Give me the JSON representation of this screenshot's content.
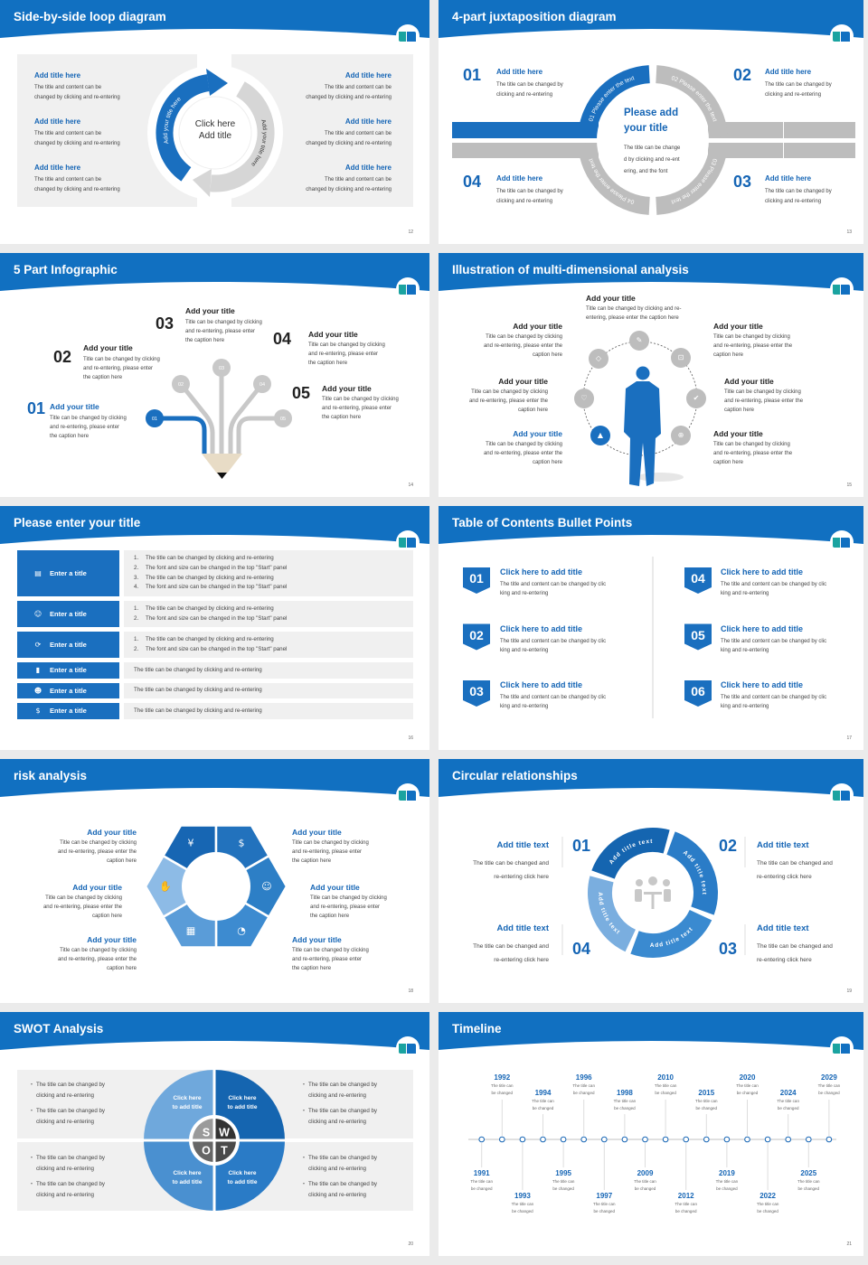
{
  "theme": {
    "header": "#1170c1",
    "teal": "#1aa3a0",
    "blue": "#1a6fbf",
    "gray": "#bdbdbd",
    "panel": "#f0f0f0"
  },
  "slides": [
    {
      "title": "Side-by-side loop diagram",
      "page": "12",
      "left_items": [
        {
          "title": "Add title here",
          "body": [
            "The title and content can be",
            "changed by clicking and re-entering"
          ]
        },
        {
          "title": "Add title here",
          "body": [
            "The title and content can be",
            "changed by clicking and re-entering"
          ]
        },
        {
          "title": "Add title here",
          "body": [
            "The title and content can be",
            "changed by clicking and re-entering"
          ]
        }
      ],
      "right_items": [
        {
          "title": "Add title here",
          "body": [
            "The title and content can be",
            "changed by clicking and re-entering"
          ]
        },
        {
          "title": "Add title here",
          "body": [
            "The title and content can be",
            "changed by clicking and re-entering"
          ]
        },
        {
          "title": "Add title here",
          "body": [
            "The title and content can be",
            "changed by clicking and re-entering"
          ]
        }
      ],
      "center": [
        "Click here",
        "Add title"
      ],
      "arc_left": "Add your title here",
      "arc_right": "Add your title here"
    },
    {
      "title": "4-part juxtaposition diagram",
      "page": "13",
      "items": [
        {
          "num": "01",
          "title": "Add title here",
          "body": [
            "The title can be changed by",
            "clicking and re-entering"
          ]
        },
        {
          "num": "02",
          "title": "Add title here",
          "body": [
            "The title can be changed by",
            "clicking and re-entering"
          ]
        },
        {
          "num": "03",
          "title": "Add title here",
          "body": [
            "The title can be changed by",
            "clicking and re-entering"
          ]
        },
        {
          "num": "04",
          "title": "Add title here",
          "body": [
            "The title can be changed by",
            "clicking and re-entering"
          ]
        }
      ],
      "ring": [
        "01 Please enter the text",
        "02 Please enter the text",
        "03 Please enter the text",
        "04 Please enter the text"
      ],
      "center_title": [
        "Please add",
        "your title"
      ],
      "center_body": [
        "The title can be change",
        "d by clicking and re-ent",
        "ering, and the font"
      ]
    },
    {
      "title": "5 Part Infographic",
      "page": "14",
      "items": [
        {
          "num": "01",
          "title": "Add your title",
          "body": [
            "Title can be changed by clicking",
            "and re-entering, please enter",
            "the caption here"
          ]
        },
        {
          "num": "02",
          "title": "Add your title",
          "body": [
            "Title can be changed by clicking",
            "and re-entering, please enter",
            "the caption here"
          ]
        },
        {
          "num": "03",
          "title": "Add your title",
          "body": [
            "Title can be changed by clicking",
            "and re-entering, please enter",
            "the caption here"
          ]
        },
        {
          "num": "04",
          "title": "Add your title",
          "body": [
            "Title can be changed by clicking",
            "and re-entering, please enter",
            "the caption here"
          ]
        },
        {
          "num": "05",
          "title": "Add your title",
          "body": [
            "Title can be changed by clicking",
            "and re-entering, please enter",
            "the caption here"
          ]
        }
      ]
    },
    {
      "title": "Illustration of multi-dimensional analysis",
      "page": "15",
      "top": {
        "title": "Add your title",
        "body": [
          "Title can be changed by clicking and re-",
          "entering, please enter the caption here"
        ]
      },
      "left": [
        {
          "title": "Add your title",
          "body": [
            "Title can be changed by clicking",
            "and re-entering, please enter the",
            "caption here"
          ]
        },
        {
          "title": "Add your title",
          "body": [
            "Title can be changed by clicking",
            "and re-entering, please enter the",
            "caption here"
          ]
        },
        {
          "title": "Add your title",
          "body": [
            "Title can be changed by clicking",
            "and re-entering, please enter the",
            "caption here"
          ]
        }
      ],
      "right": [
        {
          "title": "Add your title",
          "body": [
            "Title can be changed by clicking",
            "and re-entering, please enter the",
            "caption here"
          ]
        },
        {
          "title": "Add your title",
          "body": [
            "Title can be changed by clicking",
            "and re-entering, please enter the",
            "caption here"
          ]
        },
        {
          "title": "Add your title",
          "body": [
            "Title can be changed by clicking",
            "and re-entering, please enter the",
            "caption here"
          ]
        }
      ],
      "icons": [
        "rocket-icon",
        "diamond-icon",
        "heart-icon",
        "graduation-cap-icon",
        "lock-icon",
        "thumbs-up-icon",
        "globe-icon"
      ]
    },
    {
      "title": "Please enter your title",
      "page": "16",
      "rows": [
        {
          "label": "Enter a title",
          "icon": "presentation-icon",
          "numbers": [
            "1.",
            "2.",
            "3.",
            "4."
          ],
          "lines": [
            "The title can be changed by clicking and re-entering",
            "The font and size can be changed in the top \"Start\" panel",
            "The title can be changed by clicking and re-entering",
            "The font and size can be changed in the top \"Start\" panel"
          ]
        },
        {
          "label": "Enter a title",
          "icon": "user-card-icon",
          "numbers": [
            "1.",
            "2."
          ],
          "lines": [
            "The title can be changed by clicking and re-entering",
            "The font and size can be changed in the top \"Start\" panel"
          ]
        },
        {
          "label": "Enter a title",
          "icon": "recycle-icon",
          "numbers": [
            "1.",
            "2."
          ],
          "lines": [
            "The title can be changed by clicking and re-entering",
            "The font and size can be changed in the top \"Start\" panel"
          ]
        },
        {
          "label": "Enter a title",
          "icon": "bar-chart-icon",
          "numbers": [],
          "lines": [
            "The title can be changed by clicking and re-entering"
          ]
        },
        {
          "label": "Enter a title",
          "icon": "team-icon",
          "numbers": [],
          "lines": [
            "The title can be changed by clicking and re-entering"
          ]
        },
        {
          "label": "Enter a title",
          "icon": "hand-coin-icon",
          "numbers": [],
          "lines": [
            "The title can be changed by clicking and re-entering"
          ]
        }
      ]
    },
    {
      "title": "Table of Contents Bullet Points",
      "page": "17",
      "items": [
        {
          "num": "01",
          "title": "Click here to add title",
          "body": [
            "The title and content can be changed by clic",
            "king and re-entering"
          ]
        },
        {
          "num": "02",
          "title": "Click here to add title",
          "body": [
            "The title and content can be changed by clic",
            "king and re-entering"
          ]
        },
        {
          "num": "03",
          "title": "Click here to add title",
          "body": [
            "The title and content can be changed by clic",
            "king and re-entering"
          ]
        },
        {
          "num": "04",
          "title": "Click here to add title",
          "body": [
            "The title and content can be changed by clic",
            "king and re-entering"
          ]
        },
        {
          "num": "05",
          "title": "Click here to add title",
          "body": [
            "The title and content can be changed by clic",
            "king and re-entering"
          ]
        },
        {
          "num": "06",
          "title": "Click here to add title",
          "body": [
            "The title and content can be changed by clic",
            "king and re-entering"
          ]
        }
      ]
    },
    {
      "title": "risk analysis",
      "page": "18",
      "left": [
        {
          "title": "Add your title",
          "body": [
            "Title can be changed by clicking",
            "and re-entering, please enter the",
            "caption here"
          ]
        },
        {
          "title": "Add your title",
          "body": [
            "Title can be changed by clicking",
            "and re-entering, please enter the",
            "caption here"
          ]
        },
        {
          "title": "Add your title",
          "body": [
            "Title can be changed by clicking",
            "and re-entering, please enter the",
            "caption here"
          ]
        }
      ],
      "right": [
        {
          "title": "Add your title",
          "body": [
            "Title can be changed by clicking",
            "and re-entering, please enter",
            "the caption here"
          ]
        },
        {
          "title": "Add your title",
          "body": [
            "Title can be changed by clicking",
            "and re-entering, please enter",
            "the caption here"
          ]
        },
        {
          "title": "Add your title",
          "body": [
            "Title can be changed by clicking",
            "and re-entering, please enter",
            "the caption here"
          ]
        }
      ],
      "segments": [
        {
          "icon": "money-bag-icon",
          "color": "#1766b3"
        },
        {
          "icon": "coins-icon",
          "color": "#2272bd"
        },
        {
          "icon": "people-icon",
          "color": "#2d7fc6"
        },
        {
          "icon": "pie-chart-icon",
          "color": "#3d8bd0"
        },
        {
          "icon": "building-icon",
          "color": "#5a9cd8"
        },
        {
          "icon": "hand-yen-icon",
          "color": "#8dbbe6"
        }
      ]
    },
    {
      "title": "Circular relationships",
      "page": "19",
      "items": [
        {
          "num": "01",
          "title": "Add title text",
          "body": [
            "The title can be changed and",
            "re-entering click here"
          ],
          "segment": "Add title text",
          "color": "#1565b0"
        },
        {
          "num": "02",
          "title": "Add title text",
          "body": [
            "The title can be changed and",
            "re-entering click here"
          ],
          "segment": "Add title text",
          "color": "#2a7cc7"
        },
        {
          "num": "03",
          "title": "Add title text",
          "body": [
            "The title can be changed and",
            "re-entering click here"
          ],
          "segment": "Add title text",
          "color": "#3a8ad0"
        },
        {
          "num": "04",
          "title": "Add title text",
          "body": [
            "The title can be changed and",
            "re-entering click here"
          ],
          "segment": "Add title text",
          "color": "#7aaedf"
        }
      ]
    },
    {
      "title": "SWOT Analysis",
      "page": "20",
      "letters": [
        "S",
        "W",
        "O",
        "T"
      ],
      "quadrants": [
        [
          "Click here",
          "to add title"
        ],
        [
          "Click here",
          "to add title"
        ],
        [
          "Click here",
          "to add title"
        ],
        [
          "Click here",
          "to add title"
        ]
      ],
      "bullets": [
        [
          [
            "The title can be changed by",
            "clicking and re-entering"
          ],
          [
            "The title can be changed by",
            "clicking and re-entering"
          ]
        ],
        [
          [
            "The title can be changed by",
            "clicking and re-entering"
          ],
          [
            "The title can be changed by",
            "clicking and re-entering"
          ]
        ],
        [
          [
            "The title can be changed by",
            "clicking and re-entering"
          ],
          [
            "The title can be changed by",
            "clicking and re-entering"
          ]
        ],
        [
          [
            "The title can be changed by",
            "clicking and re-entering"
          ],
          [
            "The title can be changed by",
            "clicking and re-entering"
          ]
        ]
      ]
    },
    {
      "title": "Timeline",
      "page": "21",
      "events": [
        {
          "year": "1991",
          "body": [
            "The title can",
            "be changed"
          ]
        },
        {
          "year": "1992",
          "body": [
            "The title can",
            "be changed"
          ]
        },
        {
          "year": "1993",
          "body": [
            "The title can",
            "be changed"
          ]
        },
        {
          "year": "1994",
          "body": [
            "The title can",
            "be changed"
          ]
        },
        {
          "year": "1995",
          "body": [
            "The title can",
            "be changed"
          ]
        },
        {
          "year": "1996",
          "body": [
            "The title can",
            "be changed"
          ]
        },
        {
          "year": "1997",
          "body": [
            "The title can",
            "be changed"
          ]
        },
        {
          "year": "1998",
          "body": [
            "The title can",
            "be changed"
          ]
        },
        {
          "year": "2009",
          "body": [
            "The title can",
            "be changed"
          ]
        },
        {
          "year": "2010",
          "body": [
            "The title can",
            "be changed"
          ]
        },
        {
          "year": "2012",
          "body": [
            "The title can",
            "be changed"
          ]
        },
        {
          "year": "2015",
          "body": [
            "The title can",
            "be changed"
          ]
        },
        {
          "year": "2019",
          "body": [
            "The title can",
            "be changed"
          ]
        },
        {
          "year": "2020",
          "body": [
            "The title can",
            "be changed"
          ]
        },
        {
          "year": "2022",
          "body": [
            "The title can",
            "be changed"
          ]
        },
        {
          "year": "2024",
          "body": [
            "The title can",
            "be changed"
          ]
        },
        {
          "year": "2025",
          "body": [
            "The title can",
            "be changed"
          ]
        },
        {
          "year": "2029",
          "body": [
            "The title can",
            "be changed"
          ]
        }
      ]
    }
  ]
}
